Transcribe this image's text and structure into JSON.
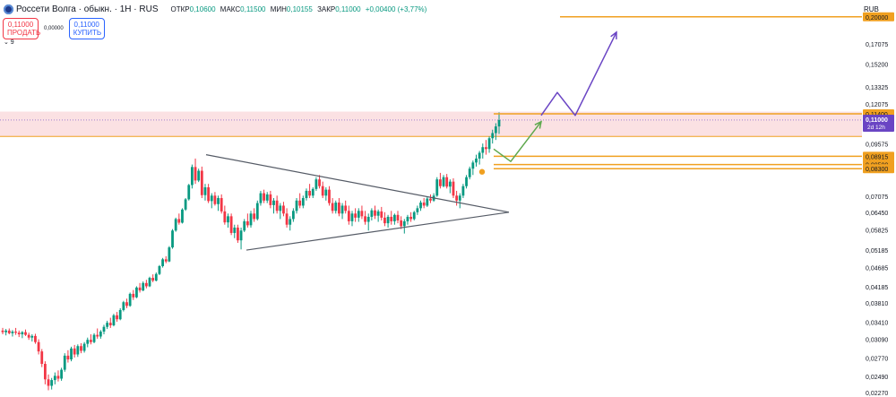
{
  "header": {
    "title": "Россети Волга · обыкн. · 1H · RUS",
    "ohlc": [
      {
        "label": "ОТКР",
        "value": "0,10600"
      },
      {
        "label": "МАКС",
        "value": "0,11500"
      },
      {
        "label": "МИН",
        "value": "0,10155"
      },
      {
        "label": "ЗАКР",
        "value": "0,11000"
      }
    ],
    "change": "+0,00400 (+3,77%)"
  },
  "trade": {
    "sell_price": "0,11000",
    "sell_label": "ПРОДАТЬ",
    "spread": "0,00000",
    "buy_price": "0,11000",
    "buy_label": "КУПИТЬ"
  },
  "indicator_toggle": "⌄ 9",
  "currency": "RUB",
  "colors": {
    "up": "#089981",
    "down": "#f23645",
    "zone": "#f7c8cc",
    "orange": "#f0a020",
    "violet": "#6a45c4",
    "green": "#5ea84d",
    "trend": "#555b66"
  },
  "chart_data": {
    "type": "candlestick",
    "ylim": [
      0.0227,
      0.205
    ],
    "price_ticks": [
      "0,17075",
      "0,15200",
      "0,13325",
      "0,12075",
      "0,09575",
      "0,07075",
      "0,06450",
      "0,05825",
      "0,05185",
      "0,04685",
      "0,04185",
      "0,03810",
      "0,03410",
      "0,03090",
      "0,02770",
      "0,02490",
      "0,02270"
    ],
    "y_scale": "log",
    "current_price": {
      "value": 0.11,
      "label": "0,11000",
      "countdown": "2d 12h"
    },
    "levels": [
      {
        "value": 0.2,
        "label": "0,20000",
        "color": "#f0a020"
      },
      {
        "value": 0.114,
        "label": "0,11400",
        "color": "#f0a020"
      },
      {
        "value": 0.08915,
        "label": "0,08915",
        "color": "#f0a020"
      },
      {
        "value": 0.085,
        "label": "0,08500",
        "color": "#f0a020"
      },
      {
        "value": 0.083,
        "label": "0,08300",
        "color": "#f0a020"
      }
    ],
    "resistance_zone": [
      0.1,
      0.1155
    ],
    "triangle": {
      "upper": [
        [
          230,
          0.09
        ],
        [
          568,
          0.0645
        ]
      ],
      "lower": [
        [
          275,
          0.0518
        ],
        [
          568,
          0.0645
        ]
      ]
    },
    "projection_green": [
      [
        551,
        0.093
      ],
      [
        570,
        0.0865
      ],
      [
        604,
        0.109
      ]
    ],
    "projection_violet": [
      [
        604,
        0.113
      ],
      [
        622,
        0.129
      ],
      [
        642,
        0.113
      ],
      [
        688,
        0.183
      ]
    ],
    "ohlc_series": [
      [
        0.0325,
        0.033,
        0.0318,
        0.0322
      ],
      [
        0.0322,
        0.0328,
        0.0316,
        0.0325
      ],
      [
        0.0325,
        0.0329,
        0.0318,
        0.032
      ],
      [
        0.032,
        0.0326,
        0.0314,
        0.0323
      ],
      [
        0.0323,
        0.033,
        0.0317,
        0.0321
      ],
      [
        0.0321,
        0.0325,
        0.0313,
        0.0318
      ],
      [
        0.0318,
        0.0324,
        0.0311,
        0.0322
      ],
      [
        0.0322,
        0.0327,
        0.0315,
        0.0317
      ],
      [
        0.0317,
        0.0321,
        0.0308,
        0.0312
      ],
      [
        0.0312,
        0.0318,
        0.0305,
        0.0315
      ],
      [
        0.0315,
        0.0319,
        0.0301,
        0.0304
      ],
      [
        0.0304,
        0.0309,
        0.0283,
        0.0288
      ],
      [
        0.0288,
        0.0292,
        0.0263,
        0.0268
      ],
      [
        0.0268,
        0.0272,
        0.0238,
        0.0245
      ],
      [
        0.0245,
        0.0252,
        0.023,
        0.0236
      ],
      [
        0.0236,
        0.0247,
        0.0231,
        0.0244
      ],
      [
        0.0244,
        0.0255,
        0.0238,
        0.025
      ],
      [
        0.025,
        0.0258,
        0.0242,
        0.0246
      ],
      [
        0.0246,
        0.0262,
        0.0243,
        0.0259
      ],
      [
        0.0259,
        0.0285,
        0.0256,
        0.0281
      ],
      [
        0.0281,
        0.029,
        0.027,
        0.0275
      ],
      [
        0.0275,
        0.0296,
        0.0272,
        0.0293
      ],
      [
        0.0293,
        0.0299,
        0.0278,
        0.0283
      ],
      [
        0.0283,
        0.03,
        0.0279,
        0.0297
      ],
      [
        0.0297,
        0.0302,
        0.0285,
        0.0289
      ],
      [
        0.0289,
        0.0304,
        0.0286,
        0.0301
      ],
      [
        0.0301,
        0.0312,
        0.0295,
        0.0308
      ],
      [
        0.0308,
        0.0318,
        0.03,
        0.0304
      ],
      [
        0.0304,
        0.032,
        0.0302,
        0.0317
      ],
      [
        0.0317,
        0.0329,
        0.031,
        0.0314
      ],
      [
        0.0314,
        0.0326,
        0.031,
        0.0323
      ],
      [
        0.0323,
        0.0336,
        0.0318,
        0.0332
      ],
      [
        0.0332,
        0.0344,
        0.0328,
        0.034
      ],
      [
        0.034,
        0.035,
        0.033,
        0.0335
      ],
      [
        0.0335,
        0.0358,
        0.0333,
        0.0355
      ],
      [
        0.0355,
        0.0362,
        0.0342,
        0.0347
      ],
      [
        0.0347,
        0.037,
        0.0345,
        0.0366
      ],
      [
        0.0366,
        0.0386,
        0.0363,
        0.0383
      ],
      [
        0.0383,
        0.0391,
        0.037,
        0.0375
      ],
      [
        0.0375,
        0.0405,
        0.0373,
        0.0402
      ],
      [
        0.0402,
        0.0411,
        0.0388,
        0.0394
      ],
      [
        0.0394,
        0.042,
        0.0392,
        0.0417
      ],
      [
        0.0417,
        0.0428,
        0.0405,
        0.041
      ],
      [
        0.041,
        0.0432,
        0.0408,
        0.0428
      ],
      [
        0.0428,
        0.0436,
        0.0415,
        0.042
      ],
      [
        0.042,
        0.0444,
        0.0418,
        0.0441
      ],
      [
        0.0441,
        0.045,
        0.043,
        0.0434
      ],
      [
        0.0434,
        0.0455,
        0.0432,
        0.0451
      ],
      [
        0.0451,
        0.0475,
        0.0448,
        0.0472
      ],
      [
        0.0472,
        0.0495,
        0.0468,
        0.0491
      ],
      [
        0.0491,
        0.05,
        0.048,
        0.0485
      ],
      [
        0.0485,
        0.053,
        0.0483,
        0.0526
      ],
      [
        0.0526,
        0.0585,
        0.0522,
        0.058
      ],
      [
        0.058,
        0.0625,
        0.0576,
        0.062
      ],
      [
        0.062,
        0.064,
        0.06,
        0.0607
      ],
      [
        0.0607,
        0.066,
        0.0604,
        0.0655
      ],
      [
        0.0655,
        0.07,
        0.065,
        0.0695
      ],
      [
        0.0695,
        0.076,
        0.069,
        0.0755
      ],
      [
        0.0755,
        0.085,
        0.074,
        0.0838
      ],
      [
        0.0838,
        0.088,
        0.076,
        0.0775
      ],
      [
        0.0775,
        0.083,
        0.0768,
        0.082
      ],
      [
        0.082,
        0.084,
        0.07,
        0.0712
      ],
      [
        0.0712,
        0.076,
        0.069,
        0.0745
      ],
      [
        0.0745,
        0.076,
        0.068,
        0.0688
      ],
      [
        0.0688,
        0.072,
        0.066,
        0.071
      ],
      [
        0.071,
        0.0725,
        0.067,
        0.0676
      ],
      [
        0.0676,
        0.071,
        0.065,
        0.07
      ],
      [
        0.07,
        0.0715,
        0.064,
        0.0648
      ],
      [
        0.0648,
        0.067,
        0.06,
        0.0608
      ],
      [
        0.0608,
        0.064,
        0.059,
        0.063
      ],
      [
        0.063,
        0.064,
        0.0565,
        0.0572
      ],
      [
        0.0572,
        0.06,
        0.0555,
        0.059
      ],
      [
        0.059,
        0.06,
        0.054,
        0.0548
      ],
      [
        0.0548,
        0.059,
        0.052,
        0.058
      ],
      [
        0.058,
        0.062,
        0.0575,
        0.0612
      ],
      [
        0.0612,
        0.064,
        0.059,
        0.0598
      ],
      [
        0.0598,
        0.065,
        0.059,
        0.064
      ],
      [
        0.064,
        0.066,
        0.061,
        0.062
      ],
      [
        0.062,
        0.069,
        0.0615,
        0.068
      ],
      [
        0.068,
        0.073,
        0.067,
        0.072
      ],
      [
        0.072,
        0.0735,
        0.068,
        0.069
      ],
      [
        0.069,
        0.0725,
        0.068,
        0.0715
      ],
      [
        0.0715,
        0.073,
        0.066,
        0.0672
      ],
      [
        0.0672,
        0.07,
        0.064,
        0.069
      ],
      [
        0.069,
        0.071,
        0.064,
        0.065
      ],
      [
        0.065,
        0.068,
        0.062,
        0.067
      ],
      [
        0.067,
        0.0685,
        0.063,
        0.064
      ],
      [
        0.064,
        0.066,
        0.059,
        0.06
      ],
      [
        0.06,
        0.063,
        0.058,
        0.062
      ],
      [
        0.062,
        0.066,
        0.061,
        0.065
      ],
      [
        0.065,
        0.07,
        0.064,
        0.069
      ],
      [
        0.069,
        0.072,
        0.066,
        0.067
      ],
      [
        0.067,
        0.071,
        0.066,
        0.07
      ],
      [
        0.07,
        0.074,
        0.069,
        0.073
      ],
      [
        0.073,
        0.076,
        0.07,
        0.071
      ],
      [
        0.071,
        0.0745,
        0.07,
        0.0738
      ],
      [
        0.0738,
        0.079,
        0.073,
        0.078
      ],
      [
        0.078,
        0.08,
        0.074,
        0.075
      ],
      [
        0.075,
        0.077,
        0.07,
        0.071
      ],
      [
        0.071,
        0.0745,
        0.069,
        0.0735
      ],
      [
        0.0735,
        0.075,
        0.067,
        0.068
      ],
      [
        0.068,
        0.07,
        0.064,
        0.065
      ],
      [
        0.065,
        0.069,
        0.064,
        0.0682
      ],
      [
        0.0682,
        0.07,
        0.063,
        0.064
      ],
      [
        0.064,
        0.068,
        0.062,
        0.067
      ],
      [
        0.067,
        0.069,
        0.064,
        0.065
      ],
      [
        0.065,
        0.067,
        0.06,
        0.0612
      ],
      [
        0.0612,
        0.065,
        0.0595,
        0.064
      ],
      [
        0.064,
        0.066,
        0.061,
        0.0625
      ],
      [
        0.0625,
        0.066,
        0.061,
        0.065
      ],
      [
        0.065,
        0.067,
        0.062,
        0.063
      ],
      [
        0.063,
        0.065,
        0.06,
        0.061
      ],
      [
        0.061,
        0.064,
        0.058,
        0.0628
      ],
      [
        0.0628,
        0.066,
        0.0615,
        0.0652
      ],
      [
        0.0652,
        0.067,
        0.062,
        0.0632
      ],
      [
        0.0632,
        0.0655,
        0.061,
        0.0648
      ],
      [
        0.0648,
        0.0665,
        0.0615,
        0.0625
      ],
      [
        0.0625,
        0.0645,
        0.0595,
        0.0605
      ],
      [
        0.0605,
        0.0635,
        0.059,
        0.0628
      ],
      [
        0.0628,
        0.065,
        0.06,
        0.0612
      ],
      [
        0.0612,
        0.064,
        0.06,
        0.0635
      ],
      [
        0.0635,
        0.065,
        0.0605,
        0.0615
      ],
      [
        0.0615,
        0.063,
        0.0585,
        0.0595
      ],
      [
        0.0595,
        0.062,
        0.057,
        0.0612
      ],
      [
        0.0612,
        0.0635,
        0.06,
        0.0628
      ],
      [
        0.0628,
        0.0645,
        0.061,
        0.062
      ],
      [
        0.062,
        0.065,
        0.0615,
        0.0645
      ],
      [
        0.0645,
        0.067,
        0.0635,
        0.066
      ],
      [
        0.066,
        0.069,
        0.065,
        0.0682
      ],
      [
        0.0682,
        0.07,
        0.066,
        0.067
      ],
      [
        0.067,
        0.0705,
        0.0665,
        0.0698
      ],
      [
        0.0698,
        0.0715,
        0.068,
        0.069
      ],
      [
        0.069,
        0.072,
        0.0685,
        0.071
      ],
      [
        0.071,
        0.079,
        0.0705,
        0.078
      ],
      [
        0.078,
        0.081,
        0.074,
        0.075
      ],
      [
        0.075,
        0.08,
        0.0745,
        0.079
      ],
      [
        0.079,
        0.0805,
        0.074,
        0.0748
      ],
      [
        0.0748,
        0.078,
        0.072,
        0.077
      ],
      [
        0.077,
        0.0785,
        0.07,
        0.071
      ],
      [
        0.071,
        0.073,
        0.067,
        0.069
      ],
      [
        0.069,
        0.072,
        0.066,
        0.071
      ],
      [
        0.071,
        0.076,
        0.07,
        0.075
      ],
      [
        0.075,
        0.08,
        0.074,
        0.079
      ],
      [
        0.079,
        0.084,
        0.078,
        0.083
      ],
      [
        0.083,
        0.087,
        0.08,
        0.086
      ],
      [
        0.086,
        0.09,
        0.084,
        0.088
      ],
      [
        0.088,
        0.092,
        0.085,
        0.091
      ],
      [
        0.091,
        0.096,
        0.088,
        0.094
      ],
      [
        0.094,
        0.098,
        0.09,
        0.093
      ],
      [
        0.093,
        0.1,
        0.091,
        0.099
      ],
      [
        0.099,
        0.104,
        0.096,
        0.102
      ],
      [
        0.102,
        0.108,
        0.098,
        0.106
      ],
      [
        0.106,
        0.115,
        0.10155,
        0.11
      ]
    ]
  }
}
